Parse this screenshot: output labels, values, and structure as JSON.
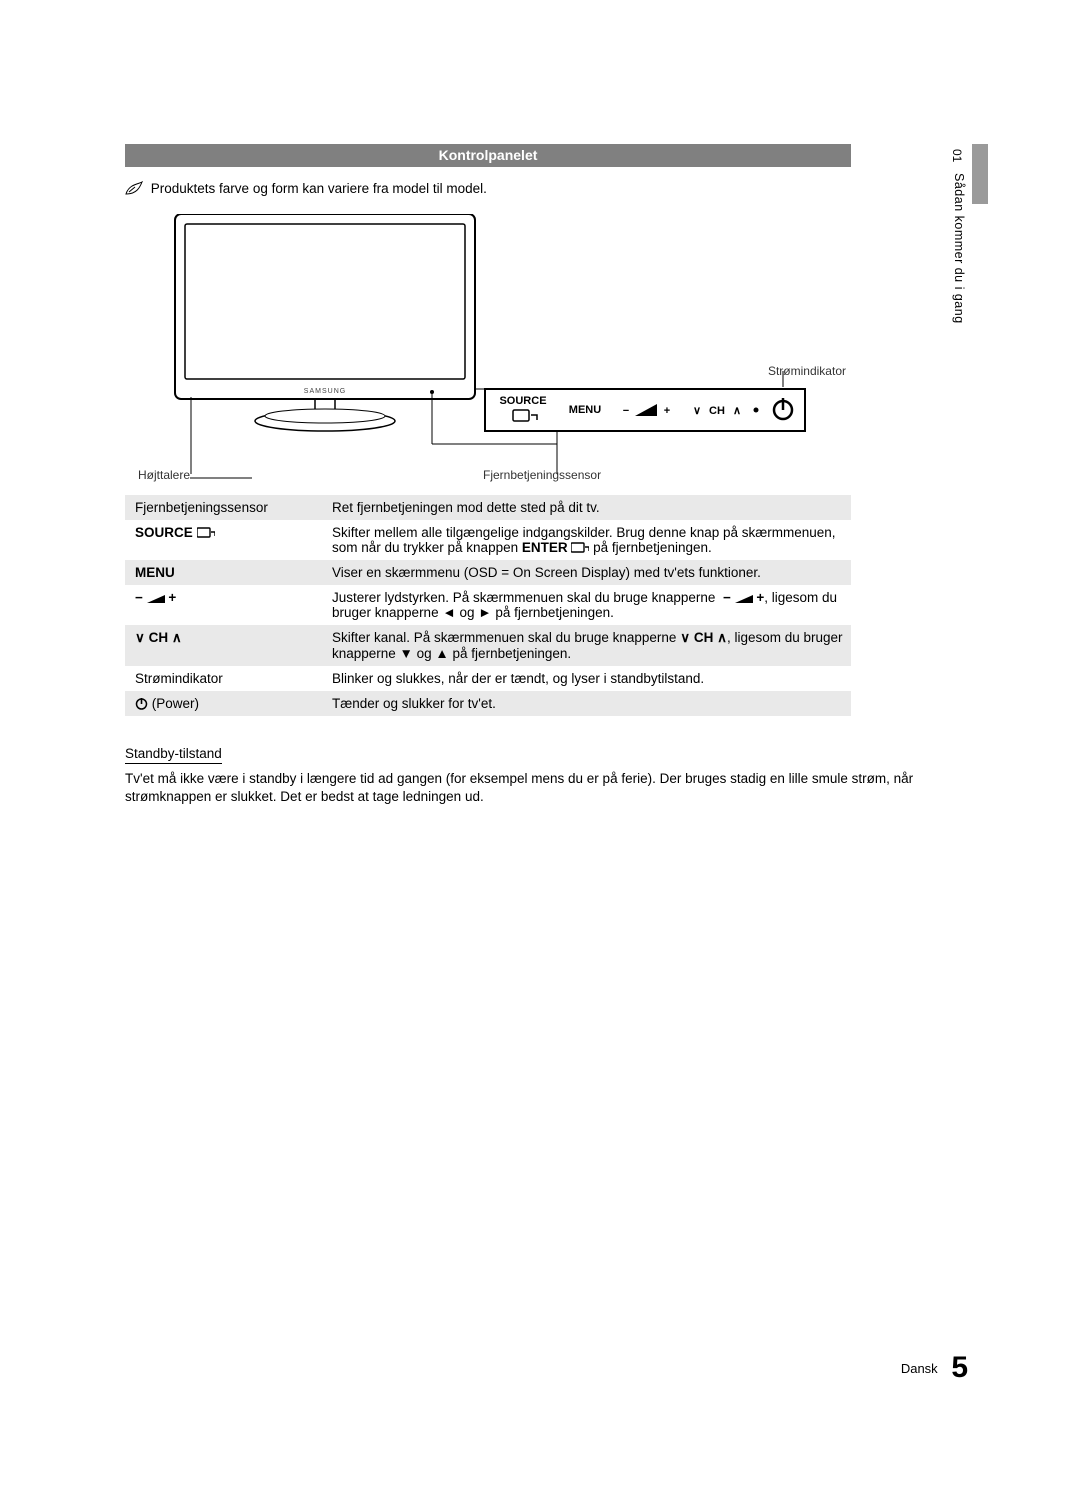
{
  "title": "Kontrolpanelet",
  "note": "Produktets farve og form kan variere fra model til model.",
  "diagram": {
    "stromindikator": "Strømindikator",
    "hojttalere": "Højttalere",
    "fjernsensor": "Fjernbetjeningssensor",
    "panel_labels": {
      "source": "SOURCE",
      "menu": "MENU",
      "ch": "CH"
    },
    "colors": {
      "outline": "#000000",
      "screen": "#ffffff",
      "panel_border": "#000000"
    }
  },
  "table": {
    "rows": [
      {
        "label_html": "Fjernbetjeningssensor",
        "desc": "Ret fjernbetjeningen mod dette sted på dit tv."
      },
      {
        "label_html": "<span class='bold'>SOURCE</span> <svg class='icon-inline' width='18' height='12'><rect x='0' y='1' width='13' height='9' rx='1' fill='none' stroke='#000' stroke-width='1.4'/><path d='M14 5 L18 5 L18 9' fill='none' stroke='#000' stroke-width='1.4'/></svg>",
        "desc": "Skifter mellem alle tilgængelige indgangskilder. Brug denne knap på skærmmenuen, som når du trykker på knappen <b>ENTER</b> <svg class='icon-inline' width='18' height='12'><rect x='0' y='1' width='13' height='9' rx='1' fill='none' stroke='#000' stroke-width='1.4'/><path d='M14 5 L18 5 L18 9' fill='none' stroke='#000' stroke-width='1.4'/></svg> på fjernbetjeningen."
      },
      {
        "label_html": "<span class='bold'>MENU</span>",
        "desc": "Viser en skærmmenu (OSD = On Screen Display) med tv'ets funktioner."
      },
      {
        "label_html": "<b>&minus;</b> <svg class='icon-inline' width='18' height='10'><polygon points='0,9 18,9 18,1' fill='#000'/></svg> <b>+</b>",
        "desc": "Justerer lydstyrken. På skærmmenuen skal du bruge knapperne &nbsp;<b>&minus;</b> <svg class='icon-inline' width='18' height='10'><polygon points='0,9 18,9 18,1' fill='#000'/></svg> <b>+</b>, ligesom du bruger knapperne ◄ og ► på fjernbetjeningen."
      },
      {
        "label_html": "<b>&or; CH &and;</b>",
        "desc": "Skifter kanal. På skærmmenuen skal du bruge knapperne <b>&or; CH &and;</b>, ligesom du bruger knapperne ▼ og ▲ på fjernbetjeningen."
      },
      {
        "label_html": "Strømindikator",
        "desc": "Blinker og slukkes, når der er tændt, og lyser i standbytilstand."
      },
      {
        "label_html": "<svg class='icon-inline' width='13' height='13'><circle cx='6.5' cy='7' r='5' fill='none' stroke='#000' stroke-width='1.5'/><line x1='6.5' y1='1' x2='6.5' y2='7' stroke='#000' stroke-width='1.6'/></svg> (Power)",
        "desc": "Tænder og slukker for tv'et."
      }
    ]
  },
  "standby": {
    "heading": "Standby-tilstand",
    "text": "Tv'et må ikke være i standby i længere tid ad gangen (for eksempel mens du er på ferie). Der bruges stadig en lille smule strøm, når strømknappen er slukket. Det er bedst at tage ledningen ud."
  },
  "side": {
    "num": "01",
    "text": "Sådan kommer du i gang"
  },
  "footer": {
    "lang": "Dansk",
    "page": "5"
  }
}
